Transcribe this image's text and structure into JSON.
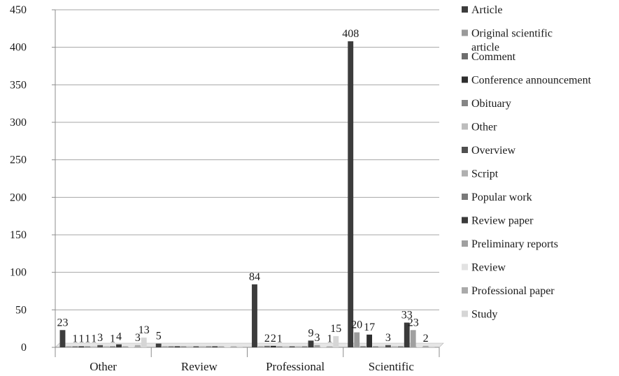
{
  "chart_data": {
    "type": "bar",
    "categories": [
      "Other",
      "Review",
      "Professional",
      "Scientific"
    ],
    "ylim": [
      0,
      450
    ],
    "yticks": [
      0,
      50,
      100,
      150,
      200,
      250,
      300,
      350,
      400,
      450
    ],
    "grid": true,
    "legend_position": "right",
    "series": [
      {
        "name": "Article",
        "color": "#3c3c3c",
        "values": [
          23,
          5,
          84,
          408
        ]
      },
      {
        "name": "Original scientific article",
        "color": "#9a9a9a",
        "values": [
          0,
          0,
          0,
          20
        ]
      },
      {
        "name": "Comment",
        "color": "#6e6e6e",
        "values": [
          1,
          0,
          2,
          0
        ]
      },
      {
        "name": "Conference announcement",
        "color": "#2e2e2e",
        "values": [
          1,
          0,
          2,
          17
        ]
      },
      {
        "name": "Obituary",
        "color": "#858585",
        "values": [
          1,
          0,
          1,
          0
        ]
      },
      {
        "name": "Other",
        "color": "#bdbdbd",
        "values": [
          1,
          0,
          0,
          0
        ]
      },
      {
        "name": "Overview",
        "color": "#505050",
        "values": [
          3,
          0,
          0,
          3
        ]
      },
      {
        "name": "Script",
        "color": "#b0b0b0",
        "values": [
          0,
          0,
          0,
          0
        ]
      },
      {
        "name": "Popular work",
        "color": "#7a7a7a",
        "values": [
          1,
          0,
          0,
          0
        ]
      },
      {
        "name": "Review paper",
        "color": "#3a3a3a",
        "values": [
          4,
          0,
          9,
          33
        ]
      },
      {
        "name": "Preliminary reports",
        "color": "#a0a0a0",
        "values": [
          0,
          0,
          3,
          23
        ]
      },
      {
        "name": "Review",
        "color": "#e2e2e2",
        "values": [
          0,
          0,
          0,
          0
        ]
      },
      {
        "name": "Professional paper",
        "color": "#aaaaaa",
        "values": [
          3,
          0,
          1,
          2
        ]
      },
      {
        "name": "Study",
        "color": "#d6d6d6",
        "values": [
          13,
          0,
          15,
          0
        ]
      }
    ]
  }
}
